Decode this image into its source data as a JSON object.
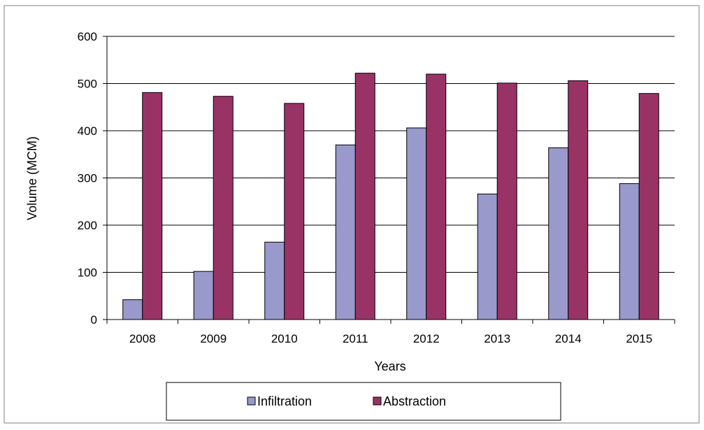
{
  "chart_data": {
    "type": "bar",
    "categories": [
      "2008",
      "2009",
      "2010",
      "2011",
      "2012",
      "2013",
      "2014",
      "2015"
    ],
    "series": [
      {
        "name": "Infiltration",
        "color": "#9999cc",
        "values": [
          42,
          102,
          164,
          370,
          406,
          266,
          364,
          288
        ]
      },
      {
        "name": "Abstraction",
        "color": "#993366",
        "values": [
          481,
          473,
          458,
          522,
          520,
          501,
          506,
          479
        ]
      }
    ],
    "xlabel": "Years",
    "ylabel": "Volume (MCM)",
    "ylim": [
      0,
      600
    ],
    "yticks": [
      "0",
      "100",
      "200",
      "300",
      "400",
      "500",
      "600"
    ],
    "grid": true,
    "legend_position": "bottom"
  }
}
